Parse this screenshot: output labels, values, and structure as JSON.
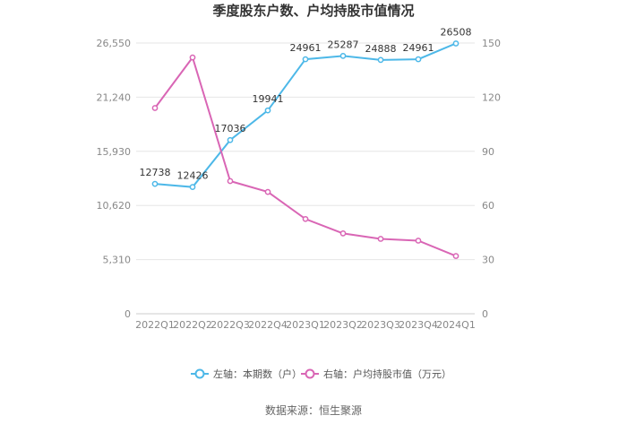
{
  "chart_data": {
    "type": "line",
    "title": "季度股东户数、户均持股市值情况",
    "categories": [
      "2022Q1",
      "2022Q2",
      "2022Q3",
      "2022Q4",
      "2023Q1",
      "2023Q2",
      "2023Q3",
      "2023Q4",
      "2024Q1"
    ],
    "series": [
      {
        "name": "左轴：本期数（户）",
        "axis": "left",
        "color": "#4db8e8",
        "values": [
          12738,
          12426,
          17036,
          19941,
          24961,
          25287,
          24888,
          24961,
          26508
        ],
        "labels": [
          "12738",
          "12426",
          "17036",
          "19941",
          "24961",
          "25287",
          "24888",
          "24961",
          "26508"
        ]
      },
      {
        "name": "右轴：户均持股市值（万元）",
        "axis": "right",
        "color": "#d966b5",
        "values": [
          114,
          142,
          73.5,
          67.5,
          52.5,
          44.5,
          41.5,
          40.5,
          32
        ]
      }
    ],
    "left_axis": {
      "min": 0,
      "max": 26550,
      "ticks": [
        0,
        5310,
        10620,
        15930,
        21240,
        26550
      ],
      "tick_labels": [
        "0",
        "5,310",
        "10,620",
        "15,930",
        "21,240",
        "26,550"
      ]
    },
    "right_axis": {
      "min": 0,
      "max": 150,
      "ticks": [
        0,
        30,
        60,
        90,
        120,
        150
      ],
      "tick_labels": [
        "0",
        "30",
        "60",
        "90",
        "120",
        "150"
      ]
    },
    "grid": true,
    "legend_position": "bottom",
    "source": "数据来源：恒生聚源"
  }
}
